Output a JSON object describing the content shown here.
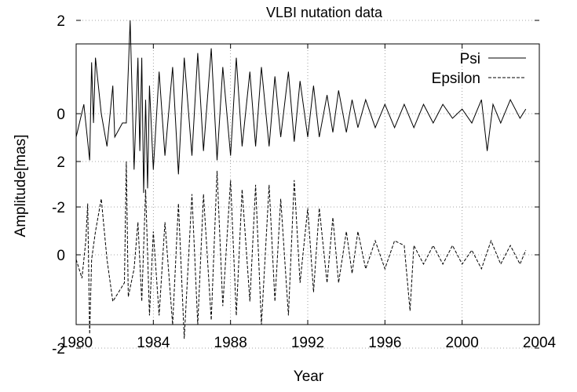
{
  "chart_data": {
    "type": "line",
    "title": "VLBI nutation data",
    "xlabel": "Year",
    "ylabel": "Amplitude[mas]",
    "xlim": [
      1980,
      2004
    ],
    "x_ticks": [
      "1980",
      "1984",
      "1988",
      "1992",
      "1996",
      "2000",
      "2004"
    ],
    "y_ticks_upper": [
      "2",
      "0",
      "-2"
    ],
    "y_ticks_lower": [
      "2",
      "0",
      "-2"
    ],
    "grid": true,
    "legend_position": "top-right",
    "series": [
      {
        "name": "Psi",
        "line_style": "solid",
        "offset_panel": "upper",
        "x": [
          1980.0,
          1980.4,
          1980.7,
          1980.8,
          1980.9,
          1981.0,
          1981.3,
          1981.6,
          1981.9,
          1982.0,
          1982.4,
          1982.6,
          1982.8,
          1983.0,
          1983.2,
          1983.3,
          1983.4,
          1983.5,
          1983.6,
          1983.7,
          1983.8,
          1984.0,
          1984.3,
          1984.6,
          1985.0,
          1985.3,
          1985.6,
          1986.0,
          1986.3,
          1986.6,
          1987.0,
          1987.3,
          1987.6,
          1988.0,
          1988.3,
          1988.6,
          1989.0,
          1989.3,
          1989.6,
          1990.0,
          1990.3,
          1990.6,
          1991.0,
          1991.3,
          1991.6,
          1992.0,
          1992.3,
          1992.6,
          1993.0,
          1993.3,
          1993.6,
          1994.0,
          1994.3,
          1994.6,
          1995.0,
          1995.5,
          1996.0,
          1996.5,
          1997.0,
          1997.5,
          1998.0,
          1998.5,
          1999.0,
          1999.5,
          2000.0,
          2000.5,
          2001.0,
          2001.3,
          2001.6,
          2002.0,
          2002.5,
          2003.0,
          2003.3
        ],
        "y": [
          -0.5,
          0.2,
          -1.0,
          1.1,
          -0.2,
          1.2,
          0.0,
          -0.7,
          0.6,
          -0.5,
          -0.2,
          -0.2,
          2.0,
          -1.2,
          1.2,
          -0.8,
          1.2,
          -1.7,
          0.3,
          -1.6,
          0.6,
          -1.2,
          0.9,
          -0.9,
          1.0,
          -1.3,
          1.2,
          -0.9,
          1.3,
          -0.8,
          1.4,
          -1.0,
          1.0,
          -0.9,
          1.2,
          -0.7,
          0.9,
          -0.7,
          1.0,
          -0.7,
          0.8,
          -0.5,
          0.9,
          -0.6,
          0.7,
          -0.5,
          0.6,
          -0.5,
          0.4,
          -0.4,
          0.5,
          -0.4,
          0.3,
          -0.3,
          0.3,
          -0.3,
          0.2,
          -0.3,
          0.2,
          -0.3,
          0.2,
          -0.2,
          0.2,
          -0.1,
          0.1,
          -0.2,
          0.3,
          -0.8,
          0.2,
          -0.2,
          0.3,
          -0.1,
          0.1
        ]
      },
      {
        "name": "Epsilon",
        "line_style": "dashed",
        "offset_panel": "lower",
        "x": [
          1980.0,
          1980.3,
          1980.5,
          1980.6,
          1980.7,
          1980.8,
          1981.0,
          1981.3,
          1981.6,
          1981.9,
          1982.2,
          1982.5,
          1982.6,
          1982.7,
          1983.0,
          1983.2,
          1983.4,
          1983.6,
          1983.8,
          1984.0,
          1984.3,
          1984.6,
          1985.0,
          1985.3,
          1985.6,
          1986.0,
          1986.3,
          1986.6,
          1987.0,
          1987.3,
          1987.6,
          1988.0,
          1988.3,
          1988.6,
          1989.0,
          1989.3,
          1989.6,
          1990.0,
          1990.3,
          1990.6,
          1991.0,
          1991.3,
          1991.6,
          1992.0,
          1992.3,
          1992.6,
          1993.0,
          1993.3,
          1993.6,
          1994.0,
          1994.3,
          1994.6,
          1995.0,
          1995.5,
          1996.0,
          1996.5,
          1997.0,
          1997.3,
          1997.5,
          1998.0,
          1998.5,
          1999.0,
          1999.5,
          2000.0,
          2000.5,
          2001.0,
          2001.5,
          2002.0,
          2002.5,
          2003.0,
          2003.3
        ],
        "y": [
          -0.1,
          -0.5,
          0.3,
          1.1,
          -1.7,
          -0.1,
          0.5,
          1.2,
          -0.1,
          -1.0,
          -0.8,
          -0.6,
          2.0,
          -0.9,
          -0.3,
          0.7,
          -1.0,
          1.4,
          -1.3,
          0.5,
          -1.3,
          0.7,
          -1.5,
          1.1,
          -1.8,
          1.3,
          -1.5,
          1.3,
          -1.4,
          1.8,
          -1.1,
          1.6,
          -1.3,
          1.4,
          -1.0,
          1.5,
          -1.5,
          1.5,
          -1.0,
          1.2,
          -1.3,
          1.6,
          -0.6,
          1.0,
          -0.8,
          1.0,
          -0.6,
          0.8,
          -0.6,
          0.5,
          -0.4,
          0.5,
          -0.3,
          0.3,
          -0.3,
          0.3,
          0.2,
          -1.2,
          0.2,
          -0.2,
          0.2,
          -0.2,
          0.2,
          -0.2,
          0.1,
          -0.3,
          0.3,
          -0.2,
          0.2,
          -0.2,
          0.1
        ]
      }
    ]
  }
}
